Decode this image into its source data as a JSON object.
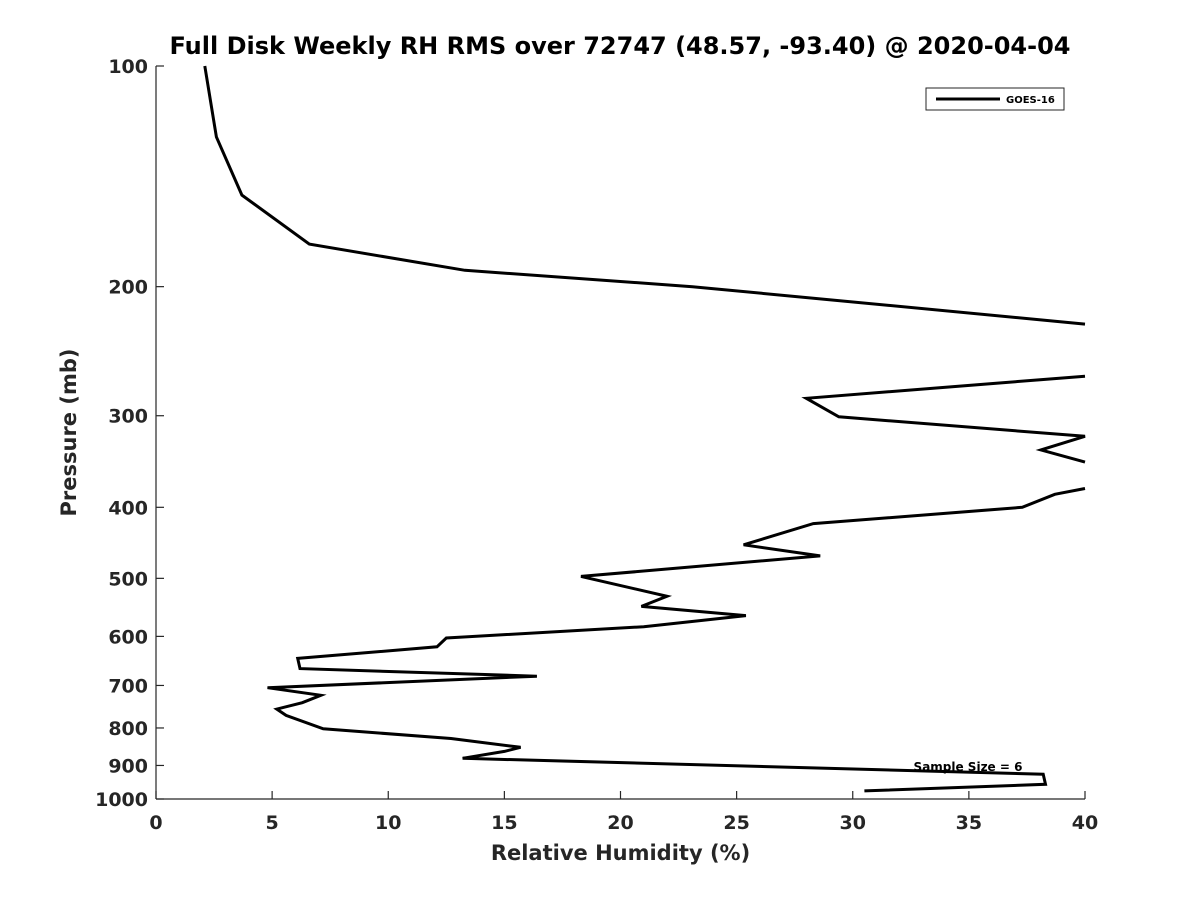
{
  "chart_data": {
    "type": "line",
    "title": "Full Disk Weekly RH RMS over 72747 (48.57, -93.40) @ 2020-04-04",
    "xlabel": "Relative Humidity (%)",
    "ylabel": "Pressure (mb)",
    "xlim": [
      0,
      40
    ],
    "ylim": [
      100,
      1000
    ],
    "y_scale": "log",
    "y_reversed": true,
    "x_ticks": [
      0,
      5,
      10,
      15,
      20,
      25,
      30,
      35,
      40
    ],
    "y_ticks": [
      100,
      200,
      300,
      400,
      500,
      600,
      700,
      800,
      900,
      1000
    ],
    "grid": false,
    "legend": {
      "placement": "top-right",
      "entries": [
        "GOES-16"
      ]
    },
    "annotation": "Sample Size = 6",
    "colors": {
      "line": "#000000",
      "axis": "#262626"
    },
    "series": [
      {
        "name": "GOES-16",
        "points": [
          [
            2.1,
            100
          ],
          [
            2.6,
            125
          ],
          [
            3.7,
            150
          ],
          [
            6.6,
            175
          ],
          [
            13.3,
            190
          ],
          [
            23.1,
            200
          ],
          [
            40.0,
            225
          ],
          [
            null,
            null
          ],
          [
            40.0,
            265
          ],
          [
            28.0,
            284
          ],
          [
            29.4,
            301
          ],
          [
            40.0,
            320
          ],
          [
            38.1,
            334
          ],
          [
            40.0,
            347
          ],
          [
            null,
            null
          ],
          [
            40.0,
            377
          ],
          [
            38.7,
            384
          ],
          [
            37.3,
            400
          ],
          [
            28.3,
            421
          ],
          [
            25.3,
            450
          ],
          [
            28.6,
            466
          ],
          [
            18.3,
            497
          ],
          [
            22.0,
            529
          ],
          [
            20.9,
            546
          ],
          [
            25.4,
            562
          ],
          [
            21.0,
            582
          ],
          [
            12.5,
            603
          ],
          [
            12.1,
            620
          ],
          [
            6.1,
            643
          ],
          [
            6.2,
            664
          ],
          [
            16.4,
            680
          ],
          [
            4.8,
            705
          ],
          [
            7.1,
            722
          ],
          [
            6.3,
            739
          ],
          [
            5.2,
            754
          ],
          [
            5.6,
            769
          ],
          [
            7.2,
            802
          ],
          [
            12.7,
            827
          ],
          [
            15.7,
            850
          ],
          [
            15.0,
            861
          ],
          [
            13.2,
            880
          ],
          [
            38.2,
            925
          ],
          [
            38.3,
            955
          ],
          [
            30.5,
            975
          ]
        ]
      }
    ]
  }
}
